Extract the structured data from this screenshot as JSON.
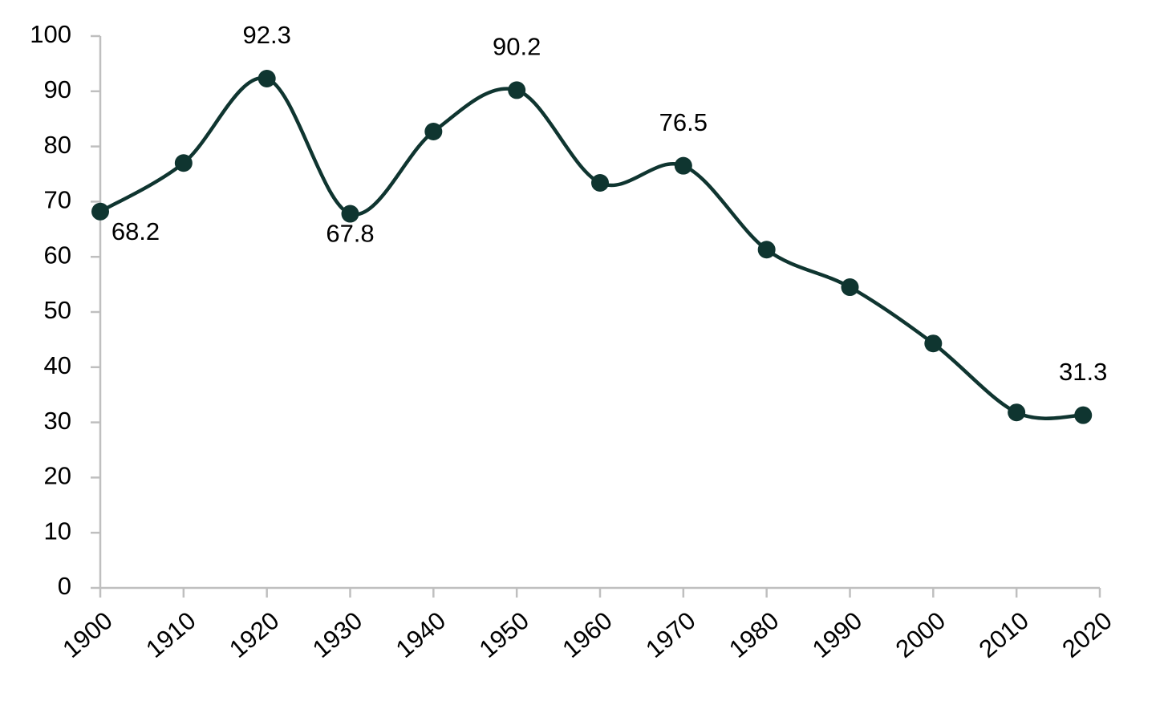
{
  "chart_data": {
    "type": "line",
    "x": [
      1900,
      1910,
      1920,
      1930,
      1940,
      1950,
      1960,
      1970,
      1980,
      1990,
      2000,
      2010,
      2018
    ],
    "series": [
      {
        "color": "#0f3530",
        "values": [
          68.2,
          77.0,
          92.3,
          67.8,
          82.7,
          90.2,
          73.4,
          76.5,
          61.3,
          54.5,
          44.3,
          31.8,
          31.3
        ],
        "value_labels": [
          "68.2",
          null,
          "92.3",
          "67.8",
          null,
          "90.2",
          null,
          "76.5",
          null,
          null,
          null,
          null,
          "31.3"
        ]
      }
    ],
    "xlim": [
      1900,
      2020
    ],
    "xticks": [
      1900,
      1910,
      1920,
      1930,
      1940,
      1950,
      1960,
      1970,
      1980,
      1990,
      2000,
      2010,
      2020
    ],
    "ylim": [
      0,
      100
    ],
    "yticks": [
      0,
      10,
      20,
      30,
      40,
      50,
      60,
      70,
      80,
      90,
      100
    ],
    "grid": false,
    "smooth": true
  }
}
